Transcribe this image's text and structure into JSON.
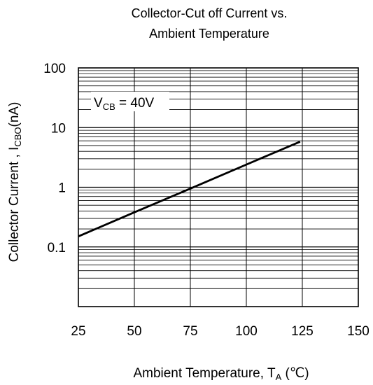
{
  "chart_data": {
    "type": "line",
    "title": [
      "Collector-Cut off Current vs.",
      "Ambient Temperature"
    ],
    "xlabel": {
      "main": "Ambient Temperature, T",
      "sub": "A",
      "unit": " (℃)"
    },
    "ylabel": {
      "main": "Collector Current , I",
      "sub": "CBO",
      "unit": "(nA)"
    },
    "annotation": {
      "main": "V",
      "sub": "CB",
      "rest": " = 40V"
    },
    "xlim": [
      25,
      150
    ],
    "ylim": [
      0.01,
      100
    ],
    "yscale": "log",
    "grid": true,
    "x_ticks": [
      "25",
      "50",
      "75",
      "100",
      "125",
      "150"
    ],
    "y_ticks": [
      "0.1",
      "1",
      "10",
      "100"
    ],
    "series": [
      {
        "x": [
          25,
          50,
          75,
          100,
          124
        ],
        "values": [
          0.15,
          0.38,
          0.95,
          2.4,
          5.8
        ]
      }
    ]
  }
}
